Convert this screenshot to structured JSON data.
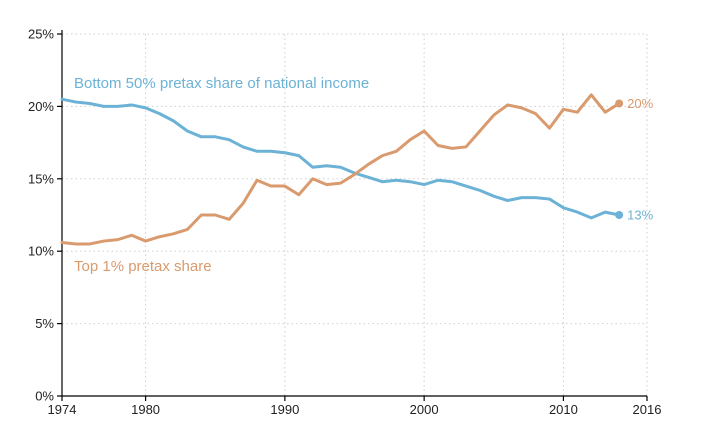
{
  "chart_data": {
    "type": "line",
    "xlim": [
      1974,
      2016
    ],
    "ylim": [
      0,
      25
    ],
    "x_ticks": [
      1974,
      1980,
      1990,
      2000,
      2010,
      2016
    ],
    "y_ticks": [
      0,
      5,
      10,
      15,
      20,
      25
    ],
    "y_tick_labels": [
      "0%",
      "5%",
      "10%",
      "15%",
      "20%",
      "25%"
    ],
    "grid": true,
    "legend": "inline labels",
    "x": [
      1974,
      1975,
      1976,
      1977,
      1978,
      1979,
      1980,
      1981,
      1982,
      1983,
      1984,
      1985,
      1986,
      1987,
      1988,
      1989,
      1990,
      1991,
      1992,
      1993,
      1994,
      1995,
      1996,
      1997,
      1998,
      1999,
      2000,
      2001,
      2002,
      2003,
      2004,
      2005,
      2006,
      2007,
      2008,
      2009,
      2010,
      2011,
      2012,
      2013,
      2014
    ],
    "series": [
      {
        "name": "Bottom 50% pretax share of national income",
        "color": "#6bb2d6",
        "end_label": "13%",
        "values": [
          20.5,
          20.3,
          20.2,
          20.0,
          20.0,
          20.1,
          19.9,
          19.5,
          19.0,
          18.3,
          17.9,
          17.9,
          17.7,
          17.2,
          16.9,
          16.9,
          16.8,
          16.6,
          15.8,
          15.9,
          15.8,
          15.4,
          15.1,
          14.8,
          14.9,
          14.8,
          14.6,
          14.9,
          14.8,
          14.5,
          14.2,
          13.8,
          13.5,
          13.7,
          13.7,
          13.6,
          13.0,
          12.7,
          12.3,
          12.7,
          12.5
        ]
      },
      {
        "name": "Top 1% pretax share",
        "color": "#d99a6e",
        "end_label": "20%",
        "values": [
          10.6,
          10.5,
          10.5,
          10.7,
          10.8,
          11.1,
          10.7,
          11.0,
          11.2,
          11.5,
          12.5,
          12.5,
          12.2,
          13.3,
          14.9,
          14.5,
          14.5,
          13.9,
          15.0,
          14.6,
          14.7,
          15.3,
          16.0,
          16.6,
          16.9,
          17.7,
          18.3,
          17.3,
          17.1,
          17.2,
          18.3,
          19.4,
          20.1,
          19.9,
          19.5,
          18.5,
          19.8,
          19.6,
          20.8,
          19.6,
          20.2
        ]
      }
    ]
  }
}
